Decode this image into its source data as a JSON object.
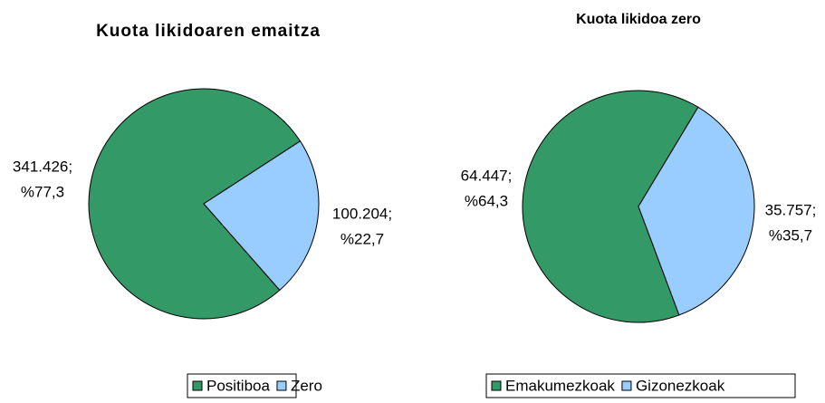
{
  "chart_data": [
    {
      "type": "pie",
      "title": "Kuota likidoaren emaitza",
      "categories": [
        "Positiboa",
        "Zero"
      ],
      "values": [
        341426,
        100204
      ],
      "value_labels": [
        [
          "341.426;",
          "%77,3"
        ],
        [
          "100.204;",
          "%22,7"
        ]
      ],
      "colors": [
        "#339966",
        "#99ccff"
      ],
      "legend": "bottom"
    },
    {
      "type": "pie",
      "title": "Kuota likidoa zero",
      "categories": [
        "Emakumezkoak",
        "Gizonezkoak"
      ],
      "values": [
        64447,
        35757
      ],
      "value_labels": [
        [
          "64.447;",
          "%64,3"
        ],
        [
          "35.757;",
          "%35,7"
        ]
      ],
      "colors": [
        "#339966",
        "#99ccff"
      ],
      "legend": "bottom"
    }
  ]
}
